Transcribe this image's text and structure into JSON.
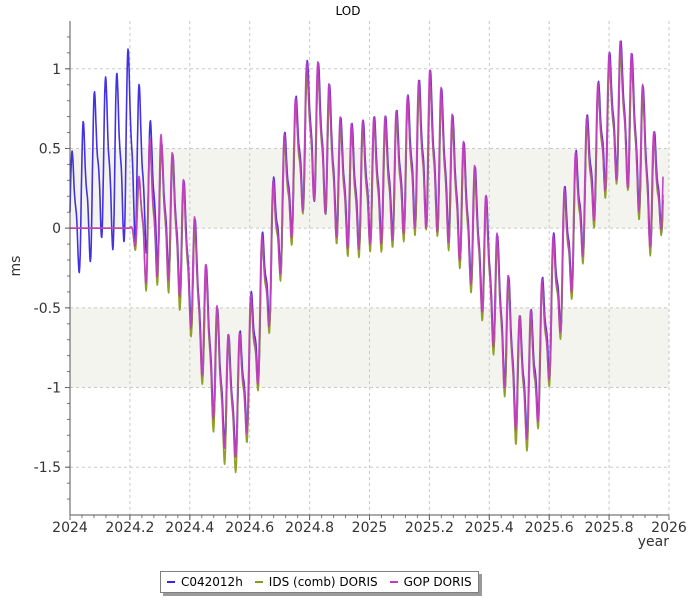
{
  "chart_data": {
    "type": "line",
    "title": "LOD",
    "ylabel": "ms",
    "xlabel": "year",
    "xlim": [
      2024,
      2026
    ],
    "ylim": [
      -1.8,
      1.3
    ],
    "x_ticks": [
      "2024",
      "2024.2",
      "2024.4",
      "2024.6",
      "2024.8",
      "2025",
      "2025.2",
      "2025.4",
      "2025.6",
      "2025.8",
      "2026"
    ],
    "y_ticks": [
      "1",
      "0.5",
      "0",
      "-0.5",
      "-1",
      "-1.5"
    ],
    "grid": true,
    "shaded_bands": [
      [
        0,
        0.5
      ],
      [
        -1,
        -0.5
      ]
    ],
    "legend_position": "bottom",
    "series": [
      {
        "name": "C042012h",
        "color": "#3a26e0",
        "x": [
          2024.0,
          2024.05,
          2024.1,
          2024.15,
          2024.2,
          2024.25,
          2024.3,
          2024.35,
          2024.4,
          2024.45,
          2024.5,
          2024.55,
          2024.6,
          2024.65,
          2024.7,
          2024.75,
          2024.8,
          2024.85,
          2024.9,
          2024.95,
          2025.0,
          2025.05,
          2025.1,
          2025.15,
          2025.2,
          2025.25,
          2025.3,
          2025.35,
          2025.4,
          2025.45,
          2025.5,
          2025.55,
          2025.6,
          2025.65,
          2025.7,
          2025.75,
          2025.8,
          2025.85,
          2025.9,
          2025.95,
          2025.98
        ],
        "y": [
          0.1,
          0.2,
          0.45,
          0.4,
          0.55,
          0.3,
          0.15,
          0.05,
          -0.2,
          -0.6,
          -0.95,
          -1.1,
          -0.85,
          -0.35,
          0.1,
          0.4,
          0.65,
          0.55,
          0.3,
          0.25,
          0.3,
          0.3,
          0.35,
          0.45,
          0.5,
          0.4,
          0.2,
          0.0,
          -0.25,
          -0.6,
          -0.95,
          -0.9,
          -0.55,
          -0.15,
          0.15,
          0.45,
          0.7,
          0.75,
          0.55,
          0.2,
          0.35
        ],
        "amplitude": [
          0.35,
          0.5,
          0.5,
          0.55,
          0.6,
          0.45,
          0.4,
          0.4,
          0.4,
          0.4,
          0.4,
          0.35,
          0.4,
          0.4,
          0.4,
          0.4,
          0.45,
          0.45,
          0.4,
          0.4,
          0.4,
          0.4,
          0.4,
          0.45,
          0.5,
          0.45,
          0.4,
          0.4,
          0.4,
          0.4,
          0.4,
          0.4,
          0.4,
          0.4,
          0.4,
          0.4,
          0.4,
          0.45,
          0.45,
          0.4,
          0.35
        ]
      },
      {
        "name": "IDS (comb) DORIS",
        "color": "#8c9a1a",
        "x": [
          2024.0,
          2024.05,
          2024.1,
          2024.15,
          2024.2,
          2024.25,
          2024.3,
          2024.35,
          2024.4,
          2024.45,
          2024.5,
          2024.55,
          2024.6,
          2024.65,
          2024.7,
          2024.75,
          2024.8,
          2024.85,
          2024.9,
          2024.95,
          2025.0,
          2025.05,
          2025.1,
          2025.15,
          2025.2,
          2025.25,
          2025.3,
          2025.35,
          2025.4,
          2025.45,
          2025.5,
          2025.55,
          2025.6,
          2025.65,
          2025.7,
          2025.75,
          2025.8,
          2025.85,
          2025.9,
          2025.95,
          2025.98
        ],
        "y": [
          0,
          0,
          0,
          0,
          0,
          0.05,
          0.1,
          0.0,
          -0.25,
          -0.65,
          -1.0,
          -1.15,
          -0.9,
          -0.4,
          0.05,
          0.35,
          0.6,
          0.5,
          0.25,
          0.2,
          0.25,
          0.25,
          0.3,
          0.4,
          0.45,
          0.35,
          0.15,
          -0.05,
          -0.3,
          -0.65,
          -1.0,
          -0.95,
          -0.6,
          -0.2,
          0.1,
          0.4,
          0.65,
          0.7,
          0.5,
          0.15,
          0.3
        ],
        "amplitude": [
          0,
          0,
          0,
          0,
          0,
          0.45,
          0.45,
          0.45,
          0.4,
          0.4,
          0.45,
          0.4,
          0.4,
          0.4,
          0.4,
          0.4,
          0.4,
          0.4,
          0.4,
          0.4,
          0.4,
          0.4,
          0.4,
          0.45,
          0.45,
          0.45,
          0.4,
          0.4,
          0.4,
          0.4,
          0.45,
          0.4,
          0.4,
          0.4,
          0.4,
          0.4,
          0.4,
          0.4,
          0.45,
          0.4,
          0.3
        ]
      },
      {
        "name": "GOP DORIS",
        "color": "#c23cc2",
        "x": [
          2024.0,
          2024.05,
          2024.1,
          2024.15,
          2024.2,
          2024.25,
          2024.3,
          2024.35,
          2024.4,
          2024.45,
          2024.5,
          2024.55,
          2024.6,
          2024.65,
          2024.7,
          2024.75,
          2024.8,
          2024.85,
          2024.9,
          2024.95,
          2025.0,
          2025.05,
          2025.1,
          2025.15,
          2025.2,
          2025.25,
          2025.3,
          2025.35,
          2025.4,
          2025.45,
          2025.5,
          2025.55,
          2025.6,
          2025.65,
          2025.7,
          2025.75,
          2025.8,
          2025.85,
          2025.9,
          2025.95,
          2025.98
        ],
        "y": [
          0,
          0,
          0,
          0,
          0,
          0.1,
          0.15,
          0.05,
          -0.2,
          -0.6,
          -0.95,
          -1.1,
          -0.85,
          -0.35,
          0.1,
          0.4,
          0.65,
          0.55,
          0.3,
          0.25,
          0.3,
          0.3,
          0.35,
          0.45,
          0.5,
          0.4,
          0.2,
          0.0,
          -0.25,
          -0.6,
          -0.95,
          -0.9,
          -0.55,
          -0.15,
          0.15,
          0.45,
          0.7,
          0.75,
          0.55,
          0.2,
          0.35
        ],
        "amplitude": [
          0,
          0,
          0,
          0,
          0,
          0.45,
          0.45,
          0.4,
          0.4,
          0.4,
          0.4,
          0.35,
          0.4,
          0.4,
          0.4,
          0.4,
          0.45,
          0.45,
          0.4,
          0.4,
          0.4,
          0.4,
          0.4,
          0.45,
          0.5,
          0.45,
          0.4,
          0.4,
          0.4,
          0.4,
          0.4,
          0.4,
          0.4,
          0.4,
          0.4,
          0.4,
          0.4,
          0.45,
          0.45,
          0.4,
          0.3
        ]
      }
    ]
  }
}
